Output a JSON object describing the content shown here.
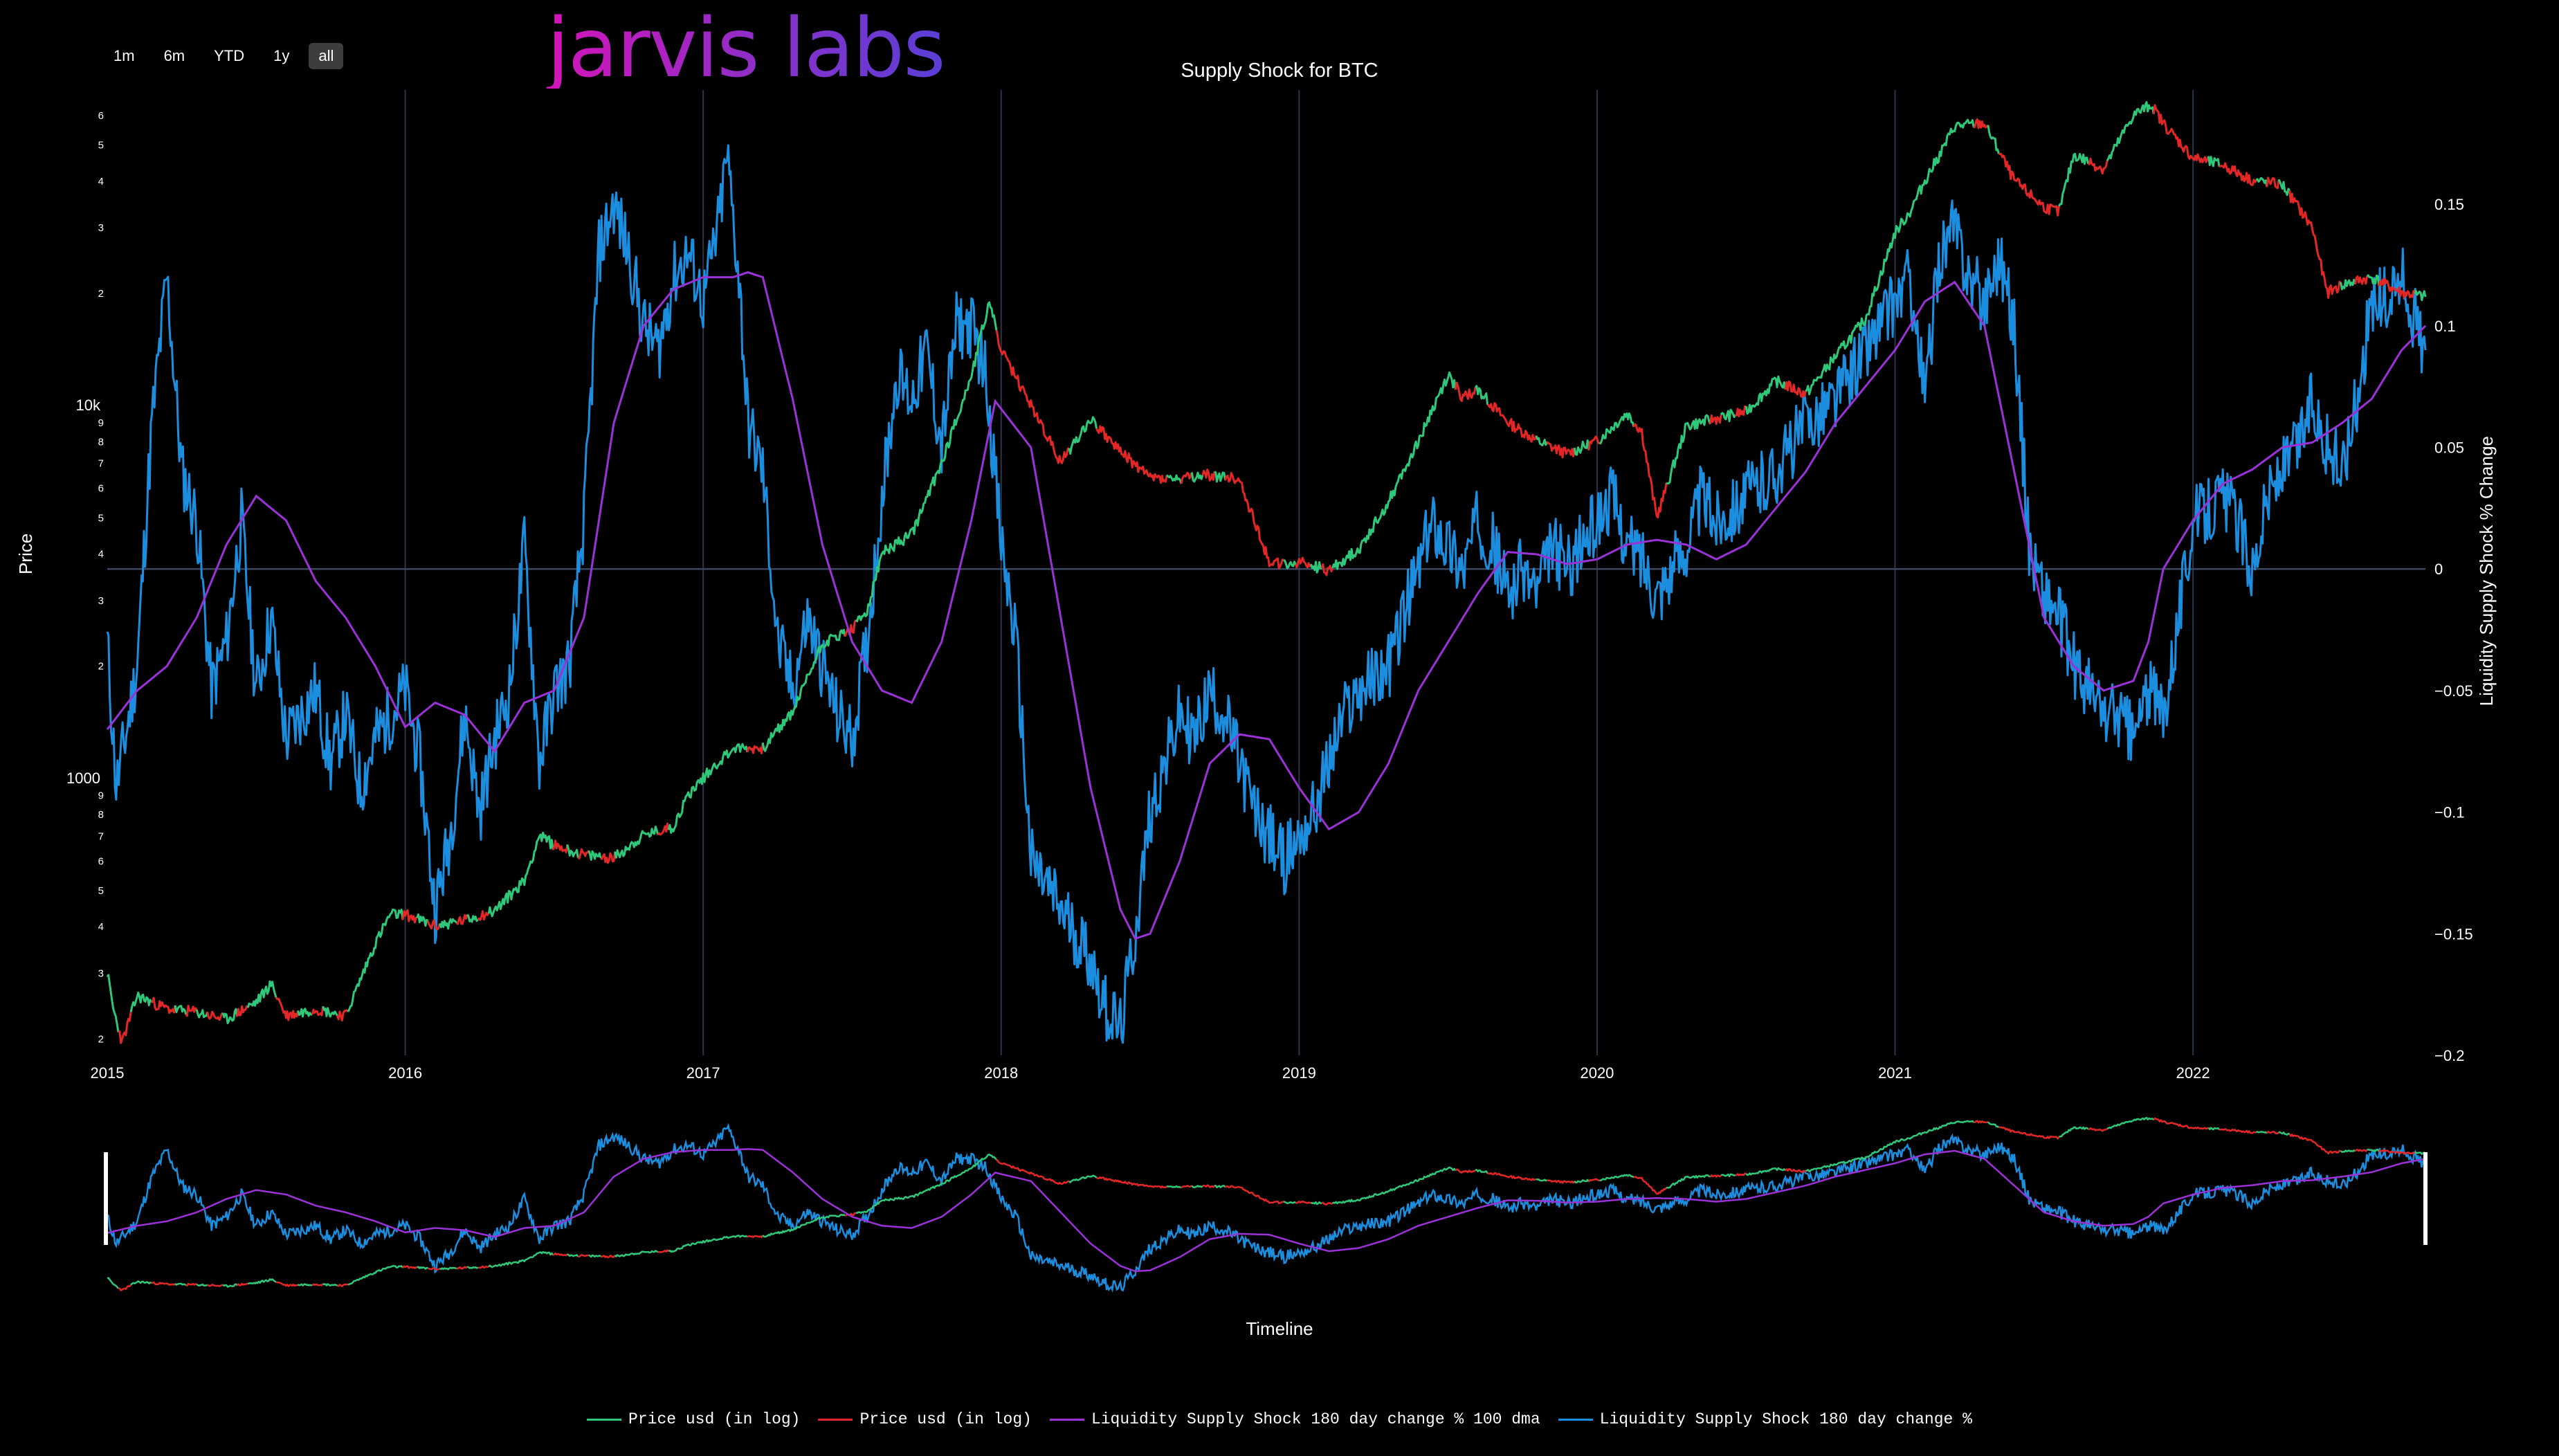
{
  "range_buttons": [
    "1m",
    "6m",
    "YTD",
    "1y",
    "all"
  ],
  "logo_text": "jarvis labs",
  "title": "Supply Shock for BTC",
  "y_left_label": "Price",
  "y_right_label": "Liquidity Supply Shock % Change",
  "x_title": "Timeline",
  "colors": {
    "green": "#2fc87a",
    "red": "#e32626",
    "purple": "#9a32d8",
    "blue": "#1b8ee0",
    "grid": "#2b3448"
  },
  "chart_data": {
    "type": "line",
    "title": "Supply Shock for BTC",
    "xlabel": "Timeline",
    "ylabel_left": "Price",
    "ylabel_right": "Liquidity Supply Shock % Change",
    "x_range": [
      2015.0,
      2022.78
    ],
    "x_ticks": [
      "2015",
      "2016",
      "2017",
      "2018",
      "2019",
      "2020",
      "2021",
      "2022"
    ],
    "y_left_scale": "log",
    "y_left_ticks": [
      {
        "v": 200,
        "t": "2"
      },
      {
        "v": 300,
        "t": "3"
      },
      {
        "v": 400,
        "t": "4"
      },
      {
        "v": 500,
        "t": "5"
      },
      {
        "v": 600,
        "t": "6"
      },
      {
        "v": 700,
        "t": "7"
      },
      {
        "v": 800,
        "t": "8"
      },
      {
        "v": 900,
        "t": "9"
      },
      {
        "v": 1000,
        "t": "1000"
      },
      {
        "v": 2000,
        "t": "2"
      },
      {
        "v": 3000,
        "t": "3"
      },
      {
        "v": 4000,
        "t": "4"
      },
      {
        "v": 5000,
        "t": "5"
      },
      {
        "v": 6000,
        "t": "6"
      },
      {
        "v": 7000,
        "t": "7"
      },
      {
        "v": 8000,
        "t": "8"
      },
      {
        "v": 9000,
        "t": "9"
      },
      {
        "v": 10000,
        "t": "10k"
      },
      {
        "v": 20000,
        "t": "2"
      },
      {
        "v": 30000,
        "t": "3"
      },
      {
        "v": 40000,
        "t": "4"
      },
      {
        "v": 50000,
        "t": "5"
      },
      {
        "v": 60000,
        "t": "6"
      }
    ],
    "y_right_range": [
      -0.2,
      0.18
    ],
    "y_right_ticks": [
      {
        "v": 0.15,
        "t": "0.15"
      },
      {
        "v": 0.1,
        "t": "0.1"
      },
      {
        "v": 0.05,
        "t": "0.05"
      },
      {
        "v": 0,
        "t": "0"
      },
      {
        "v": -0.05,
        "t": "−0.05"
      },
      {
        "v": -0.1,
        "t": "−0.1"
      },
      {
        "v": -0.15,
        "t": "−0.15"
      },
      {
        "v": -0.2,
        "t": "−0.2"
      }
    ],
    "price_series": {
      "name": "Price usd (in log)",
      "x": [
        2015.0,
        2015.02,
        2015.05,
        2015.1,
        2015.2,
        2015.3,
        2015.4,
        2015.5,
        2015.55,
        2015.6,
        2015.7,
        2015.8,
        2015.9,
        2015.95,
        2016.0,
        2016.1,
        2016.2,
        2016.3,
        2016.4,
        2016.45,
        2016.5,
        2016.6,
        2016.7,
        2016.8,
        2016.9,
        2016.95,
        2017.0,
        2017.05,
        2017.1,
        2017.2,
        2017.3,
        2017.4,
        2017.5,
        2017.55,
        2017.6,
        2017.7,
        2017.8,
        2017.9,
        2017.96,
        2018.0,
        2018.1,
        2018.2,
        2018.3,
        2018.4,
        2018.5,
        2018.6,
        2018.7,
        2018.8,
        2018.9,
        2018.96,
        2019.0,
        2019.1,
        2019.2,
        2019.3,
        2019.4,
        2019.5,
        2019.55,
        2019.6,
        2019.7,
        2019.8,
        2019.9,
        2020.0,
        2020.1,
        2020.15,
        2020.2,
        2020.3,
        2020.4,
        2020.5,
        2020.6,
        2020.7,
        2020.8,
        2020.9,
        2021.0,
        2021.05,
        2021.1,
        2021.15,
        2021.2,
        2021.3,
        2021.4,
        2021.5,
        2021.55,
        2021.6,
        2021.7,
        2021.8,
        2021.86,
        2021.9,
        2022.0,
        2022.1,
        2022.2,
        2022.3,
        2022.4,
        2022.45,
        2022.5,
        2022.6,
        2022.7,
        2022.78
      ],
      "y": [
        300,
        240,
        195,
        260,
        240,
        235,
        225,
        250,
        280,
        230,
        240,
        230,
        360,
        430,
        430,
        400,
        415,
        440,
        530,
        700,
        660,
        620,
        610,
        700,
        740,
        900,
        1000,
        1100,
        1200,
        1200,
        1500,
        2300,
        2500,
        2800,
        4000,
        4500,
        7000,
        12000,
        19000,
        14000,
        10000,
        7000,
        9200,
        7500,
        6400,
        6300,
        6500,
        6300,
        3800,
        3700,
        3800,
        3600,
        4100,
        5500,
        8000,
        12000,
        10500,
        11000,
        9000,
        8000,
        7400,
        8000,
        9500,
        8500,
        5000,
        8800,
        9200,
        9600,
        11600,
        10700,
        13500,
        17000,
        29000,
        33000,
        40000,
        47000,
        56000,
        57000,
        40000,
        34000,
        33000,
        47000,
        43000,
        60000,
        64000,
        57000,
        46000,
        44000,
        40000,
        39000,
        30000,
        20000,
        21000,
        22000,
        20000,
        19500
      ]
    },
    "series": [
      {
        "name": "Liquidity Supply Shock 180 day change % 100 dma",
        "x": [
          2015.0,
          2015.1,
          2015.2,
          2015.3,
          2015.4,
          2015.5,
          2015.6,
          2015.7,
          2015.8,
          2015.9,
          2016.0,
          2016.1,
          2016.2,
          2016.3,
          2016.4,
          2016.5,
          2016.6,
          2016.7,
          2016.8,
          2016.9,
          2017.0,
          2017.1,
          2017.15,
          2017.2,
          2017.3,
          2017.4,
          2017.5,
          2017.6,
          2017.7,
          2017.8,
          2017.9,
          2017.98,
          2018.1,
          2018.2,
          2018.3,
          2018.4,
          2018.45,
          2018.5,
          2018.6,
          2018.7,
          2018.8,
          2018.9,
          2019.0,
          2019.1,
          2019.2,
          2019.3,
          2019.4,
          2019.5,
          2019.6,
          2019.7,
          2019.8,
          2019.9,
          2020.0,
          2020.1,
          2020.2,
          2020.3,
          2020.4,
          2020.5,
          2020.6,
          2020.7,
          2020.8,
          2020.9,
          2021.0,
          2021.1,
          2021.2,
          2021.3,
          2021.4,
          2021.5,
          2021.6,
          2021.7,
          2021.8,
          2021.85,
          2021.9,
          2022.0,
          2022.1,
          2022.2,
          2022.3,
          2022.4,
          2022.5,
          2022.6,
          2022.7,
          2022.78
        ],
        "y": [
          -0.066,
          -0.05,
          -0.04,
          -0.02,
          0.01,
          0.03,
          0.02,
          -0.005,
          -0.02,
          -0.04,
          -0.065,
          -0.055,
          -0.06,
          -0.075,
          -0.055,
          -0.05,
          -0.02,
          0.06,
          0.1,
          0.115,
          0.12,
          0.12,
          0.122,
          0.12,
          0.07,
          0.01,
          -0.03,
          -0.05,
          -0.055,
          -0.03,
          0.02,
          0.069,
          0.05,
          -0.02,
          -0.09,
          -0.14,
          -0.152,
          -0.15,
          -0.12,
          -0.08,
          -0.068,
          -0.07,
          -0.09,
          -0.107,
          -0.1,
          -0.08,
          -0.05,
          -0.03,
          -0.01,
          0.007,
          0.006,
          0.002,
          0.004,
          0.01,
          0.012,
          0.01,
          0.004,
          0.01,
          0.025,
          0.04,
          0.06,
          0.075,
          0.09,
          0.11,
          0.118,
          0.1,
          0.04,
          -0.02,
          -0.04,
          -0.05,
          -0.046,
          -0.03,
          0.0,
          0.02,
          0.035,
          0.041,
          0.05,
          0.052,
          0.06,
          0.07,
          0.09,
          0.1
        ]
      },
      {
        "name": "Liquidity Supply Shock 180 day change %",
        "x": [
          2015.0,
          2015.03,
          2015.06,
          2015.1,
          2015.15,
          2015.2,
          2015.25,
          2015.3,
          2015.35,
          2015.4,
          2015.45,
          2015.5,
          2015.55,
          2015.6,
          2015.7,
          2015.75,
          2015.8,
          2015.85,
          2015.9,
          2016.0,
          2016.05,
          2016.1,
          2016.15,
          2016.2,
          2016.25,
          2016.3,
          2016.35,
          2016.4,
          2016.45,
          2016.5,
          2016.55,
          2016.6,
          2016.65,
          2016.7,
          2016.75,
          2016.8,
          2016.85,
          2016.9,
          2016.95,
          2017.0,
          2017.05,
          2017.08,
          2017.12,
          2017.15,
          2017.2,
          2017.25,
          2017.3,
          2017.35,
          2017.4,
          2017.45,
          2017.5,
          2017.55,
          2017.6,
          2017.65,
          2017.7,
          2017.75,
          2017.8,
          2017.85,
          2017.9,
          2017.95,
          2018.0,
          2018.05,
          2018.1,
          2018.15,
          2018.2,
          2018.25,
          2018.3,
          2018.35,
          2018.4,
          2018.45,
          2018.5,
          2018.55,
          2018.6,
          2018.65,
          2018.7,
          2018.75,
          2018.8,
          2018.85,
          2018.9,
          2018.95,
          2019.0,
          2019.05,
          2019.1,
          2019.15,
          2019.2,
          2019.3,
          2019.35,
          2019.4,
          2019.45,
          2019.5,
          2019.55,
          2019.6,
          2019.65,
          2019.7,
          2019.75,
          2019.8,
          2019.85,
          2019.9,
          2019.95,
          2020.0,
          2020.05,
          2020.1,
          2020.15,
          2020.2,
          2020.25,
          2020.3,
          2020.35,
          2020.4,
          2020.5,
          2020.6,
          2020.7,
          2020.8,
          2020.9,
          2021.0,
          2021.05,
          2021.1,
          2021.15,
          2021.2,
          2021.25,
          2021.3,
          2021.35,
          2021.4,
          2021.45,
          2021.5,
          2021.55,
          2021.6,
          2021.65,
          2021.7,
          2021.75,
          2021.8,
          2021.85,
          2021.9,
          2022.0,
          2022.1,
          2022.15,
          2022.2,
          2022.25,
          2022.3,
          2022.35,
          2022.4,
          2022.45,
          2022.5,
          2022.55,
          2022.6,
          2022.65,
          2022.7,
          2022.75,
          2022.78
        ],
        "y": [
          -0.03,
          -0.09,
          -0.07,
          -0.04,
          0.06,
          0.12,
          0.04,
          0.02,
          -0.05,
          -0.03,
          0.02,
          -0.05,
          -0.02,
          -0.07,
          -0.05,
          -0.08,
          -0.06,
          -0.09,
          -0.07,
          -0.05,
          -0.08,
          -0.14,
          -0.11,
          -0.06,
          -0.1,
          -0.07,
          -0.05,
          0.01,
          -0.08,
          -0.05,
          -0.04,
          0.02,
          0.13,
          0.15,
          0.13,
          0.1,
          0.09,
          0.12,
          0.13,
          0.11,
          0.14,
          0.17,
          0.12,
          0.06,
          0.04,
          -0.03,
          -0.05,
          -0.02,
          -0.04,
          -0.06,
          -0.07,
          -0.03,
          0.03,
          0.08,
          0.07,
          0.09,
          0.05,
          0.1,
          0.1,
          0.08,
          0.01,
          -0.03,
          -0.12,
          -0.13,
          -0.14,
          -0.15,
          -0.16,
          -0.18,
          -0.19,
          -0.15,
          -0.1,
          -0.08,
          -0.06,
          -0.07,
          -0.05,
          -0.06,
          -0.08,
          -0.1,
          -0.11,
          -0.12,
          -0.11,
          -0.1,
          -0.08,
          -0.06,
          -0.05,
          -0.04,
          -0.02,
          0.0,
          0.02,
          0.01,
          0.0,
          0.02,
          0.01,
          -0.01,
          0.0,
          -0.01,
          0.01,
          0.0,
          0.01,
          0.02,
          0.03,
          0.01,
          0.005,
          -0.01,
          0.0,
          0.01,
          0.03,
          0.02,
          0.03,
          0.04,
          0.06,
          0.07,
          0.09,
          0.11,
          0.12,
          0.07,
          0.13,
          0.14,
          0.12,
          0.11,
          0.13,
          0.1,
          0.01,
          -0.01,
          -0.02,
          -0.04,
          -0.05,
          -0.06,
          -0.06,
          -0.07,
          -0.05,
          -0.06,
          0.02,
          0.03,
          0.02,
          0.0,
          0.03,
          0.04,
          0.05,
          0.07,
          0.05,
          0.04,
          0.07,
          0.11,
          0.11,
          0.12,
          0.1,
          0.09
        ]
      }
    ]
  },
  "legend": [
    {
      "label": "Price usd (in log)",
      "color": "#2fc87a"
    },
    {
      "label": "Price usd (in log)",
      "color": "#e32626"
    },
    {
      "label": "Liquidity Supply Shock 180 day change % 100 dma",
      "color": "#9a32d8"
    },
    {
      "label": "Liquidity Supply Shock 180 day change %",
      "color": "#1b8ee0"
    }
  ]
}
